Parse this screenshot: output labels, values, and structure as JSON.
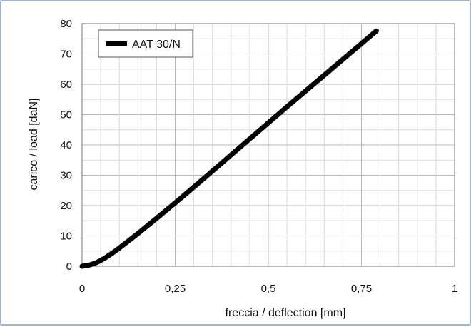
{
  "chart_data": {
    "type": "line",
    "title": "",
    "xlabel": "freccia / deflection [mm]",
    "ylabel": "carico / load [daN]",
    "xlim": [
      0,
      1
    ],
    "ylim": [
      0,
      80
    ],
    "x_ticks": [
      0,
      0.25,
      0.5,
      0.75,
      1
    ],
    "x_tick_labels": [
      "0",
      "0,25",
      "0,5",
      "0,75",
      "1"
    ],
    "y_ticks": [
      0,
      10,
      20,
      30,
      40,
      50,
      60,
      70,
      80
    ],
    "y_tick_labels": [
      "0",
      "10",
      "20",
      "30",
      "40",
      "50",
      "60",
      "70",
      "80"
    ],
    "grid": true,
    "legend_position": "top-left",
    "series": [
      {
        "name": "AAT 30/N",
        "color": "#000000",
        "x": [
          0,
          0.01,
          0.02,
          0.03,
          0.04,
          0.05,
          0.06,
          0.07,
          0.08,
          0.1,
          0.12,
          0.15,
          0.2,
          0.25,
          0.3,
          0.35,
          0.4,
          0.45,
          0.5,
          0.55,
          0.6,
          0.65,
          0.7,
          0.75,
          0.79
        ],
        "y": [
          0,
          0.2,
          0.4,
          0.8,
          1.3,
          1.9,
          2.6,
          3.4,
          4.2,
          6.0,
          7.9,
          10.8,
          15.8,
          20.9,
          26.1,
          31.4,
          36.7,
          42.0,
          47.3,
          52.6,
          57.8,
          63.0,
          68.2,
          73.4,
          77.6
        ]
      }
    ]
  }
}
